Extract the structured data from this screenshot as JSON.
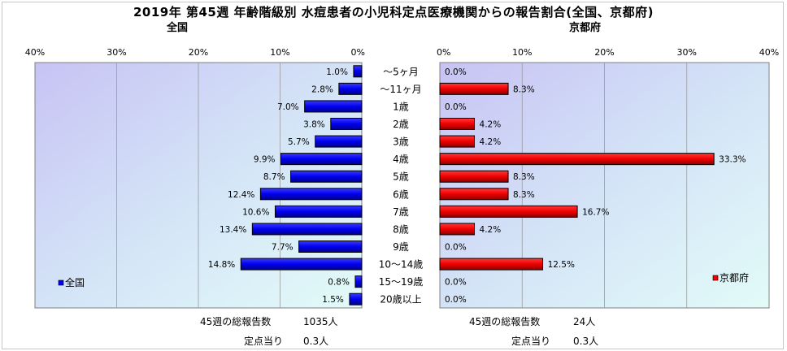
{
  "title": "2019年 第45週 年齢階級別 水痘患者の小児科定点医療機関からの報告割合(全国、京都府)",
  "chart_data": {
    "type": "bar",
    "categories": [
      "〜5ヶ月",
      "〜11ヶ月",
      "1歳",
      "2歳",
      "3歳",
      "4歳",
      "5歳",
      "6歳",
      "7歳",
      "8歳",
      "9歳",
      "10〜14歳",
      "15〜19歳",
      "20歳以上"
    ],
    "xlim": [
      0,
      40
    ],
    "xticks": [
      "0%",
      "10%",
      "20%",
      "30%",
      "40%"
    ],
    "grid": true,
    "series": [
      {
        "name": "全国",
        "panel_title": "全国",
        "color": "#0000ff",
        "legend_position": "bottom-left",
        "values": [
          1.0,
          2.8,
          7.0,
          3.8,
          5.7,
          9.9,
          8.7,
          12.4,
          10.6,
          13.4,
          7.7,
          14.8,
          0.8,
          1.5
        ],
        "labels": [
          "1.0%",
          "2.8%",
          "7.0%",
          "3.8%",
          "5.7%",
          "9.9%",
          "8.7%",
          "12.4%",
          "10.6%",
          "13.4%",
          "7.7%",
          "14.8%",
          "0.8%",
          "1.5%"
        ]
      },
      {
        "name": "京都府",
        "panel_title": "京都府",
        "color": "#ff0000",
        "legend_position": "bottom-right",
        "values": [
          0.0,
          8.3,
          0.0,
          4.2,
          4.2,
          33.3,
          8.3,
          8.3,
          16.7,
          4.2,
          0.0,
          12.5,
          0.0,
          0.0
        ],
        "labels": [
          "0.0%",
          "8.3%",
          "0.0%",
          "4.2%",
          "4.2%",
          "33.3%",
          "8.3%",
          "8.3%",
          "16.7%",
          "4.2%",
          "0.0%",
          "12.5%",
          "0.0%",
          "0.0%"
        ]
      }
    ]
  },
  "footer": {
    "national": {
      "total_label": "45週の総報告数",
      "total_value": "1035人",
      "per_label": "定点当り",
      "per_value": "0.3人"
    },
    "kyoto": {
      "total_label": "45週の総報告数",
      "total_value": "24人",
      "per_label": "定点当り",
      "per_value": "0.3人"
    }
  }
}
